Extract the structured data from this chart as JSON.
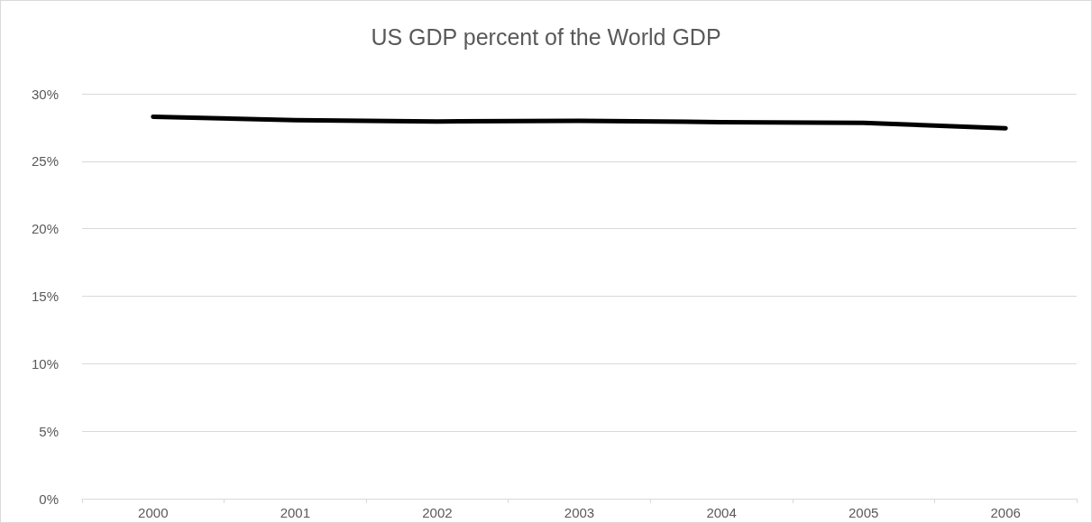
{
  "chart_data": {
    "type": "line",
    "title": "US GDP percent of the World GDP",
    "categories": [
      "2000",
      "2001",
      "2002",
      "2003",
      "2004",
      "2005",
      "2006"
    ],
    "series": [
      {
        "color": "#000000",
        "values": [
          28.3,
          28.05,
          27.95,
          28.0,
          27.9,
          27.85,
          27.45
        ]
      }
    ],
    "ylim": [
      0,
      30
    ],
    "yticks": [
      {
        "value": 0,
        "label": "0%"
      },
      {
        "value": 5,
        "label": "5%"
      },
      {
        "value": 10,
        "label": "10%"
      },
      {
        "value": 15,
        "label": "15%"
      },
      {
        "value": 20,
        "label": "20%"
      },
      {
        "value": 25,
        "label": "25%"
      },
      {
        "value": 30,
        "label": "30%"
      }
    ],
    "grid": "y",
    "marker": "none",
    "line_style": "solid"
  }
}
